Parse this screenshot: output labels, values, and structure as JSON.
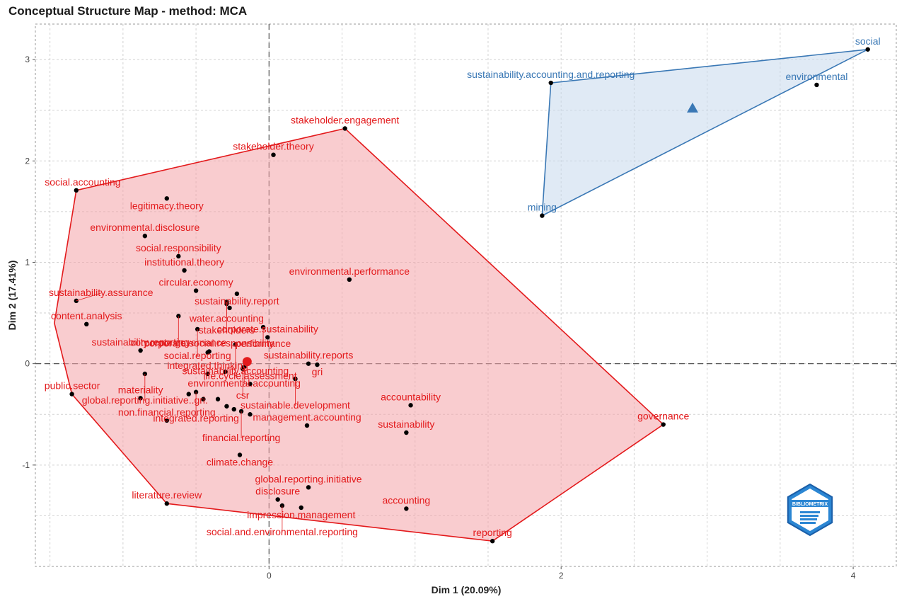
{
  "chart_data": {
    "type": "scatter",
    "title": "Conceptual Structure Map - method: MCA",
    "xlabel": "Dim 1 (20.09%)",
    "ylabel": "Dim 2 (17.41%)",
    "xlim": [
      -1.6,
      4.3
    ],
    "ylim": [
      -2.0,
      3.35
    ],
    "xticks": [
      0,
      2,
      4
    ],
    "yticks": [
      -1,
      0,
      1,
      2,
      3
    ],
    "grid": true,
    "reference_lines": {
      "x": 0,
      "y": 0
    },
    "logo": "BIBLIOMETRIX",
    "clusters": [
      {
        "color": "#e31a1c",
        "fill": "#f4a3a8",
        "centroid": {
          "x": -0.15,
          "y": 0.02,
          "shape": "circle"
        },
        "hull": [
          {
            "x": 0.52,
            "y": 2.32
          },
          {
            "x": 2.7,
            "y": -0.6
          },
          {
            "x": 1.53,
            "y": -1.75
          },
          {
            "x": -0.7,
            "y": -1.38
          },
          {
            "x": -1.35,
            "y": -0.3
          },
          {
            "x": -1.47,
            "y": 0.4
          },
          {
            "x": -1.32,
            "y": 1.71
          }
        ],
        "points": [
          {
            "label": "stakeholder.engagement",
            "x": 0.52,
            "y": 2.32
          },
          {
            "label": "stakeholder.theory",
            "x": 0.03,
            "y": 2.06
          },
          {
            "label": "social.accounting",
            "x": -1.32,
            "y": 1.71
          },
          {
            "label": "legitimacy.theory",
            "x": -0.7,
            "y": 1.63
          },
          {
            "label": "environmental.disclosure",
            "x": -0.85,
            "y": 1.26
          },
          {
            "label": "social.responsibility",
            "x": -0.62,
            "y": 1.06
          },
          {
            "label": "institutional.theory",
            "x": -0.58,
            "y": 0.92
          },
          {
            "label": "environmental.performance",
            "x": 0.55,
            "y": 0.83
          },
          {
            "label": "circular.economy",
            "x": -0.5,
            "y": 0.72
          },
          {
            "label": "sustainability.report",
            "x": -0.22,
            "y": 0.69
          },
          {
            "label": "sustainability.assurance",
            "x": -1.32,
            "y": 0.62
          },
          {
            "label": "water.accounting",
            "x": -0.29,
            "y": 0.61
          },
          {
            "label": "stakeholders",
            "x": -0.29,
            "y": 0.59
          },
          {
            "label": "corporate.governance",
            "x": -0.62,
            "y": 0.47
          },
          {
            "label": "performance",
            "x": -0.04,
            "y": 0.36
          },
          {
            "label": "social.reporting",
            "x": -0.49,
            "y": 0.34
          },
          {
            "label": "content.analysis",
            "x": -1.25,
            "y": 0.39
          },
          {
            "label": "corporate.sustainability",
            "x": -0.01,
            "y": 0.26
          },
          {
            "label": "sustainability.accounting",
            "x": -0.23,
            "y": 0.19
          },
          {
            "label": "sustainability.reporting",
            "x": -0.88,
            "y": 0.13
          },
          {
            "label": "corporate.social.responsibility",
            "x": -0.41,
            "y": 0.12
          },
          {
            "label": "environmental.accounting",
            "x": -0.17,
            "y": -0.03
          },
          {
            "label": "sustainability.reports",
            "x": 0.27,
            "y": 0.0
          },
          {
            "label": "global.reporting.initiative..gri.",
            "x": -0.85,
            "y": -0.1
          },
          {
            "label": "gri",
            "x": 0.33,
            "y": -0.01
          },
          {
            "label": "csr",
            "x": -0.18,
            "y": -0.05
          },
          {
            "label": "integrated.thinking",
            "x": -0.42,
            "y": -0.1
          },
          {
            "label": "sustainable.development",
            "x": 0.18,
            "y": -0.15
          },
          {
            "label": "public.sector",
            "x": -1.35,
            "y": -0.3
          },
          {
            "label": "materiality",
            "x": -0.88,
            "y": -0.34
          },
          {
            "label": "life.cycle.assessment",
            "x": -0.13,
            "y": -0.2
          },
          {
            "label": "integrated.reporting",
            "x": -0.5,
            "y": -0.28
          },
          {
            "label": "accountability",
            "x": 0.97,
            "y": -0.41
          },
          {
            "label": "financial.reporting",
            "x": -0.19,
            "y": -0.47
          },
          {
            "label": "management.accounting",
            "x": 0.26,
            "y": -0.61
          },
          {
            "label": "non.financial.reporting",
            "x": -0.7,
            "y": -0.56
          },
          {
            "label": "governance",
            "x": 2.7,
            "y": -0.6
          },
          {
            "label": "sustainability",
            "x": 0.94,
            "y": -0.68
          },
          {
            "label": "climate.change",
            "x": -0.2,
            "y": -0.9
          },
          {
            "label": "global.reporting.initiative",
            "x": 0.27,
            "y": -1.22
          },
          {
            "label": "disclosure",
            "x": 0.06,
            "y": -1.34
          },
          {
            "label": "literature.review",
            "x": -0.7,
            "y": -1.38
          },
          {
            "label": "accounting",
            "x": 0.94,
            "y": -1.43
          },
          {
            "label": "impression.management",
            "x": 0.22,
            "y": -1.42
          },
          {
            "label": "social.and.environmental.reporting",
            "x": 0.09,
            "y": -1.4
          },
          {
            "label": "reporting",
            "x": 1.53,
            "y": -1.75
          }
        ],
        "extra_points": [
          {
            "x": -0.27,
            "y": 0.55
          },
          {
            "x": -0.42,
            "y": 0.11
          },
          {
            "x": -0.55,
            "y": -0.3
          },
          {
            "x": -0.45,
            "y": -0.35
          },
          {
            "x": -0.35,
            "y": -0.35
          },
          {
            "x": -0.29,
            "y": -0.42
          },
          {
            "x": -0.24,
            "y": -0.45
          },
          {
            "x": -0.13,
            "y": -0.5
          },
          {
            "x": -0.3,
            "y": -0.08
          }
        ]
      },
      {
        "color": "#3a78b5",
        "fill": "#c6d9ec",
        "centroid": {
          "x": 2.9,
          "y": 2.52,
          "shape": "triangle"
        },
        "hull": [
          {
            "x": 4.1,
            "y": 3.1
          },
          {
            "x": 1.87,
            "y": 1.46
          },
          {
            "x": 1.93,
            "y": 2.77
          }
        ],
        "points": [
          {
            "label": "social",
            "x": 4.1,
            "y": 3.1
          },
          {
            "label": "sustainability.accounting.and.reporting",
            "x": 1.93,
            "y": 2.77
          },
          {
            "label": "environmental",
            "x": 3.75,
            "y": 2.75
          },
          {
            "label": "mining",
            "x": 1.87,
            "y": 1.46
          }
        ]
      }
    ]
  }
}
